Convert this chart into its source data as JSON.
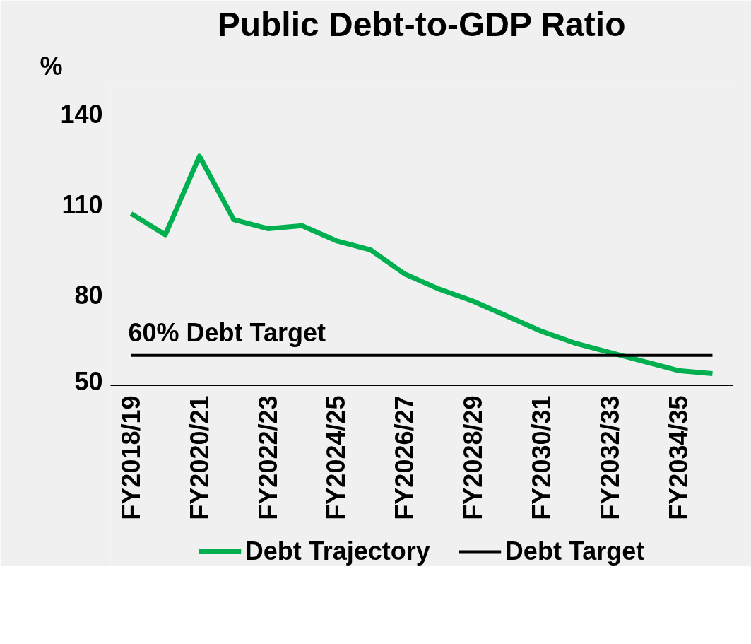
{
  "chart_data": {
    "type": "line",
    "title": "Public Debt-to-GDP Ratio",
    "ylabel": "%",
    "categories": [
      "FY2018/19",
      null,
      "FY2020/21",
      null,
      "FY2022/23",
      null,
      "FY2024/25",
      null,
      "FY2026/27",
      null,
      "FY2028/29",
      null,
      "FY2030/31",
      null,
      "FY2032/33",
      null,
      "FY2034/35",
      null
    ],
    "series": [
      {
        "name": "Debt Trajectory",
        "color": "#00b050",
        "values": [
          107,
          100,
          126,
          105,
          102,
          103,
          98,
          95,
          87,
          82,
          78,
          73,
          68,
          64,
          61,
          58,
          55,
          54
        ]
      },
      {
        "name": "Debt Target",
        "color": "#000000",
        "values": [
          60,
          60,
          60,
          60,
          60,
          60,
          60,
          60,
          60,
          60,
          60,
          60,
          60,
          60,
          60,
          60,
          60,
          60
        ]
      }
    ],
    "annotations": [
      "60% Debt Target"
    ],
    "ylim": [
      50,
      150
    ],
    "yticks": [
      50,
      80,
      110,
      140
    ],
    "grid": false,
    "legend": "bottom",
    "marker": "none",
    "line_style": "solid"
  }
}
